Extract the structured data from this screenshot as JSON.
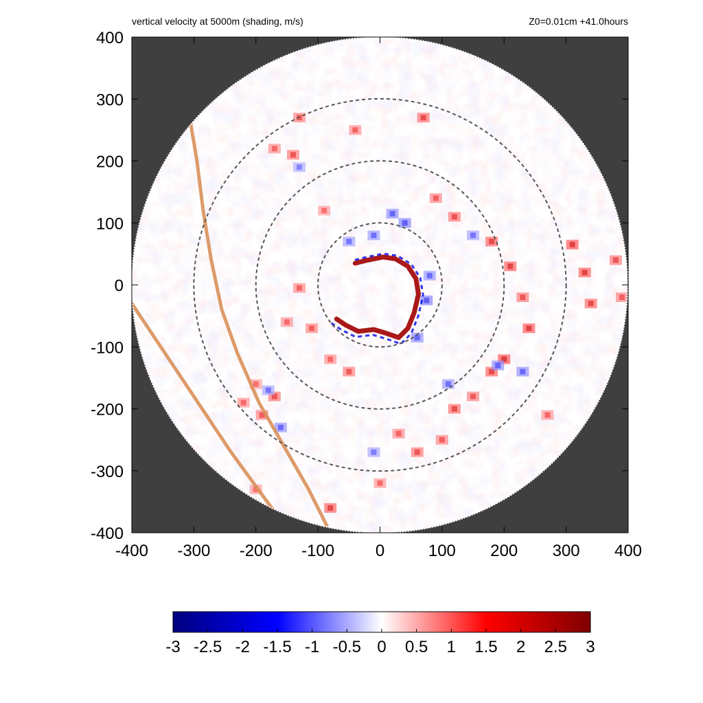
{
  "chart_data": {
    "type": "heatmap",
    "title": "vertical velocity at 5000m (shading, m/s)",
    "subtitle": "Z0=0.01cm  +41.0hours",
    "xlabel": "",
    "ylabel": "",
    "xlim": [
      -400,
      400
    ],
    "ylim": [
      -400,
      400
    ],
    "xticks": [
      -400,
      -300,
      -200,
      -100,
      0,
      100,
      200,
      300,
      400
    ],
    "yticks": [
      -400,
      -300,
      -200,
      -100,
      0,
      100,
      200,
      300,
      400
    ],
    "domain_radius": 400,
    "range_rings": [
      100,
      200,
      300
    ],
    "colorbar": {
      "min": -3,
      "max": 3,
      "ticks": [
        "-3",
        "-2.5",
        "-2",
        "-1.5",
        "-1",
        "-0.5",
        "0",
        "0.5",
        "1",
        "1.5",
        "2",
        "2.5",
        "3"
      ],
      "colors": [
        "#00007f",
        "#0000ff",
        "#ffffff",
        "#ff0000",
        "#7f0000"
      ]
    },
    "coastlines": [
      [
        [
          -305,
          260
        ],
        [
          -295,
          200
        ],
        [
          -285,
          120
        ],
        [
          -272,
          40
        ],
        [
          -255,
          -40
        ],
        [
          -230,
          -110
        ],
        [
          -195,
          -190
        ],
        [
          -155,
          -260
        ],
        [
          -115,
          -330
        ],
        [
          -85,
          -390
        ]
      ],
      [
        [
          -400,
          -30
        ],
        [
          -360,
          -90
        ],
        [
          -320,
          -150
        ],
        [
          -280,
          -210
        ],
        [
          -240,
          -270
        ],
        [
          -200,
          -325
        ],
        [
          -160,
          -380
        ]
      ]
    ],
    "eyewall_arc": [
      [
        -70,
        -55
      ],
      [
        -55,
        -65
      ],
      [
        -35,
        -75
      ],
      [
        -10,
        -72
      ],
      [
        10,
        -78
      ],
      [
        30,
        -85
      ],
      [
        45,
        -70
      ],
      [
        55,
        -45
      ],
      [
        62,
        -15
      ],
      [
        58,
        10
      ],
      [
        45,
        30
      ],
      [
        25,
        42
      ],
      [
        5,
        45
      ],
      [
        -20,
        40
      ],
      [
        -40,
        35
      ]
    ],
    "cells": [
      [
        -170,
        220,
        1.8
      ],
      [
        -140,
        210,
        2.2
      ],
      [
        -130,
        270,
        2.0
      ],
      [
        -90,
        120,
        1.6
      ],
      [
        -40,
        250,
        1.9
      ],
      [
        70,
        270,
        2.4
      ],
      [
        90,
        140,
        2.0
      ],
      [
        120,
        110,
        2.3
      ],
      [
        180,
        70,
        2.5
      ],
      [
        210,
        30,
        2.6
      ],
      [
        230,
        -20,
        2.2
      ],
      [
        240,
        -70,
        2.7
      ],
      [
        200,
        -120,
        2.8
      ],
      [
        180,
        -140,
        2.5
      ],
      [
        150,
        -180,
        2.1
      ],
      [
        120,
        -200,
        2.4
      ],
      [
        100,
        -250,
        2.0
      ],
      [
        60,
        -270,
        2.2
      ],
      [
        30,
        -240,
        1.9
      ],
      [
        -50,
        -140,
        2.1
      ],
      [
        -80,
        -120,
        1.8
      ],
      [
        -110,
        -70,
        2.0
      ],
      [
        -130,
        -5,
        1.9
      ],
      [
        -150,
        -60,
        1.7
      ],
      [
        -170,
        -180,
        2.3
      ],
      [
        -190,
        -210,
        2.1
      ],
      [
        -200,
        -160,
        1.6
      ],
      [
        -220,
        -190,
        1.8
      ],
      [
        310,
        65,
        2.7
      ],
      [
        330,
        20,
        2.6
      ],
      [
        340,
        -30,
        2.4
      ],
      [
        380,
        40,
        2.2
      ],
      [
        390,
        -20,
        2.0
      ],
      [
        270,
        -210,
        1.8
      ],
      [
        -80,
        -360,
        2.5
      ],
      [
        0,
        -320,
        1.7
      ],
      [
        -200,
        -330,
        1.6
      ],
      [
        40,
        100,
        -2.0
      ],
      [
        20,
        115,
        -1.8
      ],
      [
        -10,
        80,
        -1.6
      ],
      [
        75,
        -25,
        -2.0
      ],
      [
        80,
        15,
        -1.7
      ],
      [
        60,
        -85,
        -1.8
      ],
      [
        -50,
        70,
        -1.5
      ],
      [
        190,
        -130,
        -1.9
      ],
      [
        230,
        -140,
        -1.8
      ],
      [
        -160,
        -230,
        -1.7
      ],
      [
        -180,
        -170,
        -1.5
      ],
      [
        -10,
        -270,
        -1.4
      ],
      [
        150,
        80,
        -1.5
      ],
      [
        -130,
        190,
        -1.3
      ],
      [
        110,
        -160,
        -1.6
      ]
    ]
  }
}
